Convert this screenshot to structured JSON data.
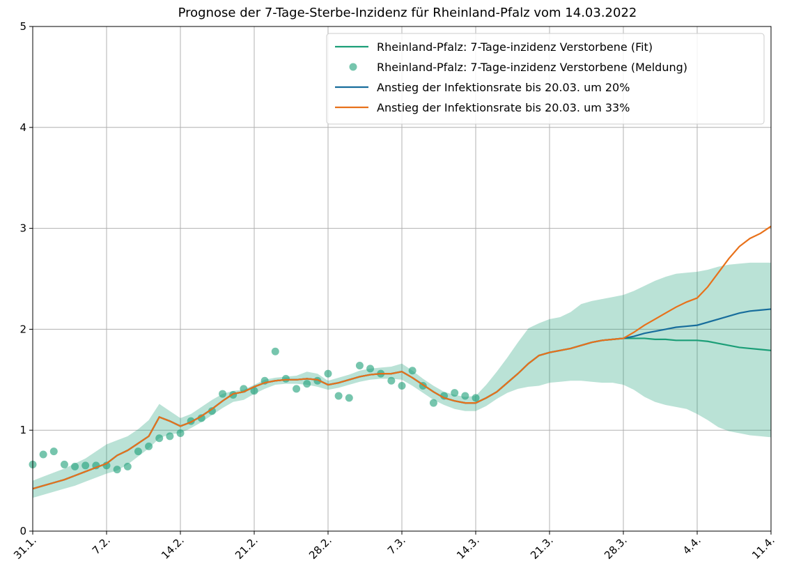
{
  "chart_data": {
    "type": "line",
    "title": "Prognose der 7-Tage-Sterbe-Inzidenz für Rheinland-Pfalz vom 14.03.2022",
    "x": [
      0,
      1,
      2,
      3,
      4,
      5,
      6,
      7,
      8,
      9,
      10,
      11,
      12,
      13,
      14,
      15,
      16,
      17,
      18,
      19,
      20,
      21,
      22,
      23,
      24,
      25,
      26,
      27,
      28,
      29,
      30,
      31,
      32,
      33,
      34,
      35,
      36,
      37,
      38,
      39,
      40,
      41,
      42,
      43,
      44,
      45,
      46,
      47,
      48,
      49,
      50,
      51,
      52,
      53,
      54,
      55,
      56,
      57,
      58,
      59,
      60,
      61,
      62,
      63,
      64,
      65,
      66,
      67,
      68,
      69,
      70
    ],
    "xlim": [
      0,
      70
    ],
    "xticks": [
      {
        "value": 0,
        "label": "31.1."
      },
      {
        "value": 7,
        "label": "7.2."
      },
      {
        "value": 14,
        "label": "14.2."
      },
      {
        "value": 21,
        "label": "21.2."
      },
      {
        "value": 28,
        "label": "28.2."
      },
      {
        "value": 35,
        "label": "7.3."
      },
      {
        "value": 42,
        "label": "14.3."
      },
      {
        "value": 49,
        "label": "21.3."
      },
      {
        "value": 56,
        "label": "28.3."
      },
      {
        "value": 63,
        "label": "4.4."
      },
      {
        "value": 70,
        "label": "11.4."
      }
    ],
    "ylim": [
      0,
      5
    ],
    "yticks": [
      0,
      1,
      2,
      3,
      4,
      5
    ],
    "grid": true,
    "legend": "upper right",
    "band_color": "#1b9e77",
    "band_upper": [
      0.5,
      0.54,
      0.58,
      0.62,
      0.67,
      0.72,
      0.79,
      0.86,
      0.9,
      0.94,
      1.01,
      1.1,
      1.26,
      1.19,
      1.12,
      1.16,
      1.23,
      1.3,
      1.36,
      1.39,
      1.4,
      1.45,
      1.5,
      1.52,
      1.53,
      1.54,
      1.58,
      1.56,
      1.49,
      1.52,
      1.55,
      1.59,
      1.61,
      1.62,
      1.63,
      1.66,
      1.59,
      1.51,
      1.44,
      1.38,
      1.35,
      1.33,
      1.34,
      1.45,
      1.58,
      1.72,
      1.87,
      2.01,
      2.06,
      2.1,
      2.12,
      2.17,
      2.25,
      2.28,
      2.3,
      2.32,
      2.34,
      2.38,
      2.43,
      2.48,
      2.52,
      2.55,
      2.56,
      2.57,
      2.59,
      2.62,
      2.64,
      2.65,
      2.66,
      2.66,
      2.66
    ],
    "band_lower": [
      0.33,
      0.36,
      0.39,
      0.42,
      0.45,
      0.49,
      0.53,
      0.57,
      0.6,
      0.66,
      0.74,
      0.82,
      0.92,
      0.96,
      0.97,
      1.02,
      1.08,
      1.15,
      1.22,
      1.28,
      1.3,
      1.36,
      1.41,
      1.45,
      1.46,
      1.46,
      1.45,
      1.43,
      1.4,
      1.42,
      1.45,
      1.48,
      1.5,
      1.51,
      1.51,
      1.5,
      1.44,
      1.37,
      1.3,
      1.25,
      1.21,
      1.19,
      1.19,
      1.24,
      1.31,
      1.37,
      1.41,
      1.43,
      1.44,
      1.47,
      1.48,
      1.49,
      1.49,
      1.48,
      1.47,
      1.47,
      1.45,
      1.4,
      1.33,
      1.28,
      1.25,
      1.23,
      1.21,
      1.16,
      1.1,
      1.03,
      0.99,
      0.97,
      0.95,
      0.94,
      0.93
    ],
    "series": [
      {
        "name": "Rheinland-Pfalz: 7-Tage-inzidenz Verstorbene (Fit)",
        "color": "#1b9e77",
        "kind": "line",
        "values": [
          0.42,
          0.45,
          0.48,
          0.51,
          0.55,
          0.59,
          0.63,
          0.67,
          0.75,
          0.8,
          0.87,
          0.94,
          1.13,
          1.09,
          1.04,
          1.08,
          1.14,
          1.21,
          1.29,
          1.36,
          1.38,
          1.43,
          1.47,
          1.49,
          1.5,
          1.5,
          1.51,
          1.5,
          1.45,
          1.47,
          1.5,
          1.53,
          1.55,
          1.56,
          1.56,
          1.58,
          1.52,
          1.45,
          1.38,
          1.32,
          1.29,
          1.27,
          1.27,
          1.32,
          1.38,
          1.47,
          1.56,
          1.66,
          1.74,
          1.77,
          1.79,
          1.81,
          1.84,
          1.87,
          1.89,
          1.9,
          1.91,
          1.91,
          1.91,
          1.9,
          1.9,
          1.89,
          1.89,
          1.89,
          1.88,
          1.86,
          1.84,
          1.82,
          1.81,
          1.8,
          1.79
        ]
      },
      {
        "name": "Rheinland-Pfalz: 7-Tage-inzidenz Verstorbene (Meldung)",
        "color": "#1b9e77",
        "kind": "scatter",
        "values": [
          0.66,
          0.76,
          0.79,
          0.66,
          0.64,
          0.65,
          0.65,
          0.65,
          0.61,
          0.64,
          0.79,
          0.84,
          0.92,
          0.94,
          0.97,
          1.09,
          1.12,
          1.19,
          1.36,
          1.35,
          1.41,
          1.39,
          1.49,
          1.78,
          1.51,
          1.41,
          1.46,
          1.49,
          1.56,
          1.34,
          1.32,
          1.64,
          1.61,
          1.56,
          1.49,
          1.44,
          1.59,
          1.44,
          1.27,
          1.34,
          1.37,
          1.34,
          1.32,
          null,
          null,
          null,
          null,
          null,
          null,
          null,
          null,
          null,
          null,
          null,
          null,
          null,
          null,
          null,
          null,
          null,
          null,
          null,
          null,
          null,
          null,
          null,
          null,
          null,
          null,
          null,
          null
        ]
      },
      {
        "name": "Anstieg der Infektionsrate bis 20.03. um 20%",
        "color": "#176d9c",
        "kind": "line",
        "values": [
          0.42,
          0.45,
          0.48,
          0.51,
          0.55,
          0.59,
          0.63,
          0.67,
          0.75,
          0.8,
          0.87,
          0.94,
          1.13,
          1.09,
          1.04,
          1.08,
          1.14,
          1.21,
          1.29,
          1.36,
          1.38,
          1.43,
          1.47,
          1.49,
          1.5,
          1.5,
          1.51,
          1.5,
          1.45,
          1.47,
          1.5,
          1.53,
          1.55,
          1.56,
          1.56,
          1.58,
          1.52,
          1.45,
          1.38,
          1.32,
          1.29,
          1.27,
          1.27,
          1.32,
          1.38,
          1.47,
          1.56,
          1.66,
          1.74,
          1.77,
          1.79,
          1.81,
          1.84,
          1.87,
          1.89,
          1.9,
          1.91,
          1.93,
          1.96,
          1.98,
          2.0,
          2.02,
          2.03,
          2.04,
          2.07,
          2.1,
          2.13,
          2.16,
          2.18,
          2.19,
          2.2
        ]
      },
      {
        "name": "Anstieg der Infektionsrate bis 20.03. um 33%",
        "color": "#e8711a",
        "kind": "line",
        "values": [
          0.42,
          0.45,
          0.48,
          0.51,
          0.55,
          0.59,
          0.63,
          0.67,
          0.75,
          0.8,
          0.87,
          0.94,
          1.13,
          1.09,
          1.04,
          1.08,
          1.14,
          1.21,
          1.29,
          1.36,
          1.38,
          1.43,
          1.47,
          1.49,
          1.5,
          1.5,
          1.51,
          1.5,
          1.45,
          1.47,
          1.5,
          1.53,
          1.55,
          1.56,
          1.56,
          1.58,
          1.52,
          1.45,
          1.38,
          1.32,
          1.29,
          1.27,
          1.27,
          1.32,
          1.38,
          1.47,
          1.56,
          1.66,
          1.74,
          1.77,
          1.79,
          1.81,
          1.84,
          1.87,
          1.89,
          1.9,
          1.91,
          1.97,
          2.04,
          2.1,
          2.16,
          2.22,
          2.27,
          2.31,
          2.42,
          2.56,
          2.7,
          2.82,
          2.9,
          2.95,
          3.02
        ]
      }
    ]
  }
}
